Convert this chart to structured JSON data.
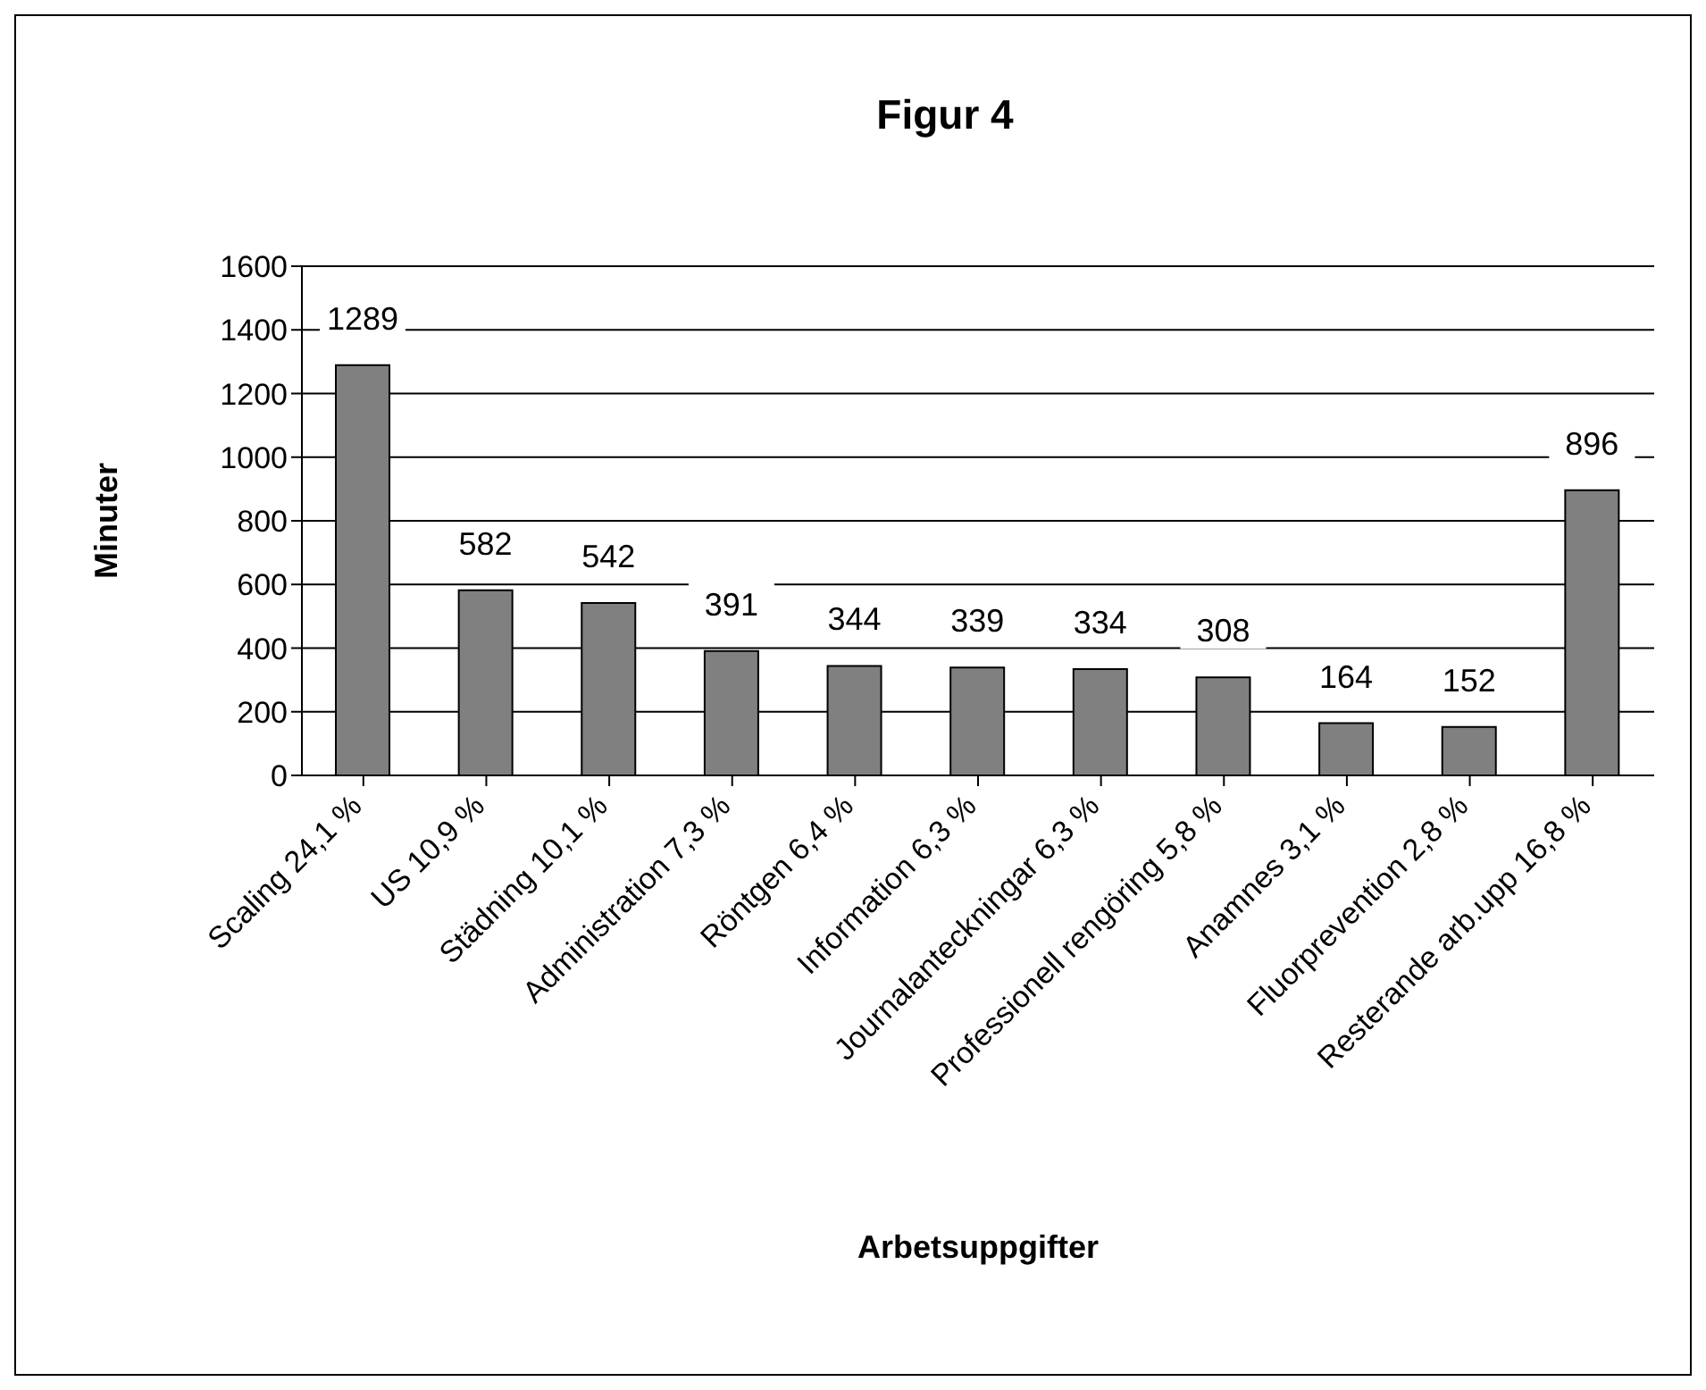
{
  "chart_data": {
    "type": "bar",
    "title": "Figur 4",
    "xlabel": "Arbetsuppgifter",
    "ylabel": "Minuter",
    "categories": [
      "Scaling 24,1 %",
      "US 10,9 %",
      "Städning 10,1 %",
      "Administration 7,3 %",
      "Röntgen 6,4 %",
      "Information 6,3 %",
      "Journalanteckningar 6,3 %",
      "Professionell rengöring 5,8 %",
      "Anamnes 3,1 %",
      "Fluorprevention 2,8 %",
      "Resterande arb.upp 16,8 %"
    ],
    "values": [
      1289,
      582,
      542,
      391,
      344,
      339,
      334,
      308,
      164,
      152,
      896
    ],
    "color": "#808080",
    "ylim": [
      0,
      1600
    ],
    "yticks": [
      0,
      200,
      400,
      600,
      800,
      1000,
      1200,
      1400,
      1600
    ],
    "grid": "y",
    "data_labels": true,
    "legend": false
  }
}
